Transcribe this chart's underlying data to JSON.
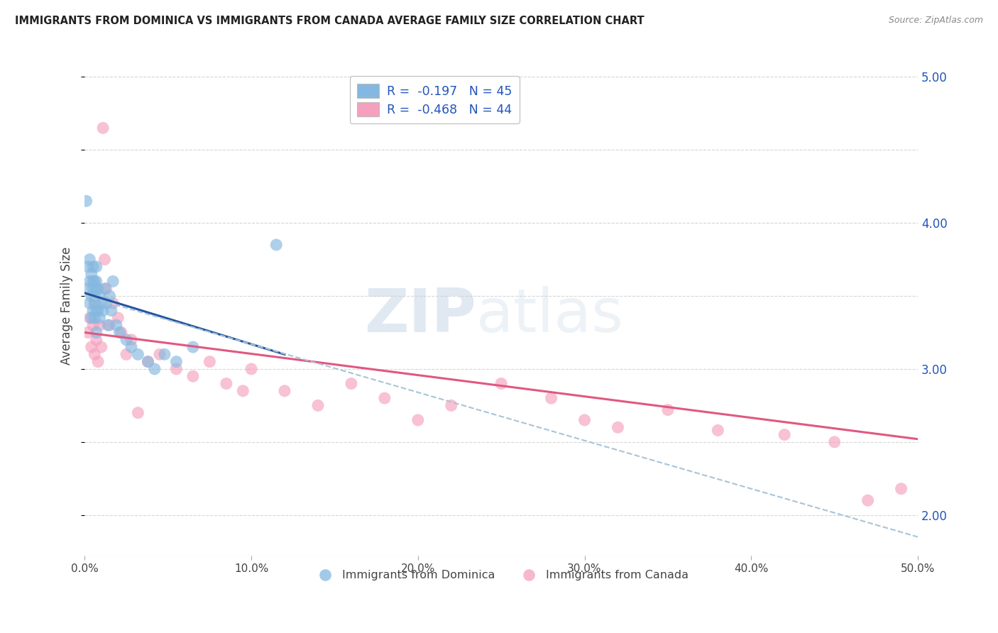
{
  "title": "IMMIGRANTS FROM DOMINICA VS IMMIGRANTS FROM CANADA AVERAGE FAMILY SIZE CORRELATION CHART",
  "source": "Source: ZipAtlas.com",
  "ylabel": "Average Family Size",
  "xmin": 0.0,
  "xmax": 0.5,
  "ymin": 1.72,
  "ymax": 5.15,
  "yticks": [
    2.0,
    3.0,
    4.0,
    5.0
  ],
  "xtick_labels": [
    "0.0%",
    "10.0%",
    "20.0%",
    "30.0%",
    "40.0%",
    "50.0%"
  ],
  "xtick_vals": [
    0.0,
    0.1,
    0.2,
    0.3,
    0.4,
    0.5
  ],
  "blue_color": "#85b8e0",
  "pink_color": "#f5a0be",
  "blue_line_color": "#2255a0",
  "pink_line_color": "#e05880",
  "dashed_line_color": "#a8c4d8",
  "legend_blue_label": "R =  -0.197   N = 45",
  "legend_pink_label": "R =  -0.468   N = 44",
  "legend_text_color": "#2255bb",
  "watermark_zip": "ZIP",
  "watermark_atlas": "atlas",
  "series1_label": "Immigrants from Dominica",
  "series2_label": "Immigrants from Canada",
  "blue_x": [
    0.001,
    0.002,
    0.002,
    0.003,
    0.003,
    0.003,
    0.004,
    0.004,
    0.004,
    0.005,
    0.005,
    0.005,
    0.005,
    0.006,
    0.006,
    0.006,
    0.006,
    0.007,
    0.007,
    0.007,
    0.007,
    0.007,
    0.008,
    0.008,
    0.009,
    0.009,
    0.01,
    0.011,
    0.012,
    0.013,
    0.014,
    0.015,
    0.016,
    0.017,
    0.019,
    0.021,
    0.025,
    0.028,
    0.032,
    0.038,
    0.042,
    0.048,
    0.055,
    0.065,
    0.115
  ],
  "blue_y": [
    4.15,
    3.55,
    3.7,
    3.45,
    3.6,
    3.75,
    3.5,
    3.65,
    3.35,
    3.55,
    3.4,
    3.6,
    3.7,
    3.5,
    3.35,
    3.6,
    3.45,
    3.55,
    3.4,
    3.25,
    3.6,
    3.7,
    3.55,
    3.4,
    3.5,
    3.35,
    3.45,
    3.4,
    3.55,
    3.45,
    3.3,
    3.5,
    3.4,
    3.6,
    3.3,
    3.25,
    3.2,
    3.15,
    3.1,
    3.05,
    3.0,
    3.1,
    3.05,
    3.15,
    3.85
  ],
  "pink_x": [
    0.002,
    0.003,
    0.004,
    0.005,
    0.006,
    0.006,
    0.007,
    0.008,
    0.009,
    0.01,
    0.011,
    0.012,
    0.013,
    0.015,
    0.017,
    0.02,
    0.022,
    0.025,
    0.028,
    0.032,
    0.038,
    0.045,
    0.055,
    0.065,
    0.075,
    0.085,
    0.095,
    0.1,
    0.12,
    0.14,
    0.16,
    0.18,
    0.2,
    0.22,
    0.25,
    0.28,
    0.3,
    0.32,
    0.35,
    0.38,
    0.42,
    0.45,
    0.47,
    0.49
  ],
  "pink_y": [
    3.25,
    3.35,
    3.15,
    3.3,
    3.1,
    3.45,
    3.2,
    3.05,
    3.3,
    3.15,
    4.65,
    3.75,
    3.55,
    3.3,
    3.45,
    3.35,
    3.25,
    3.1,
    3.2,
    2.7,
    3.05,
    3.1,
    3.0,
    2.95,
    3.05,
    2.9,
    2.85,
    3.0,
    2.85,
    2.75,
    2.9,
    2.8,
    2.65,
    2.75,
    2.9,
    2.8,
    2.65,
    2.6,
    2.72,
    2.58,
    2.55,
    2.5,
    2.1,
    2.18
  ],
  "blue_trend_x": [
    0.0,
    0.12
  ],
  "blue_trend_y": [
    3.52,
    3.1
  ],
  "pink_trend_x": [
    0.0,
    0.5
  ],
  "pink_trend_y": [
    3.25,
    2.52
  ],
  "dashed_trend_x": [
    0.0,
    0.5
  ],
  "dashed_trend_y": [
    3.5,
    1.85
  ]
}
